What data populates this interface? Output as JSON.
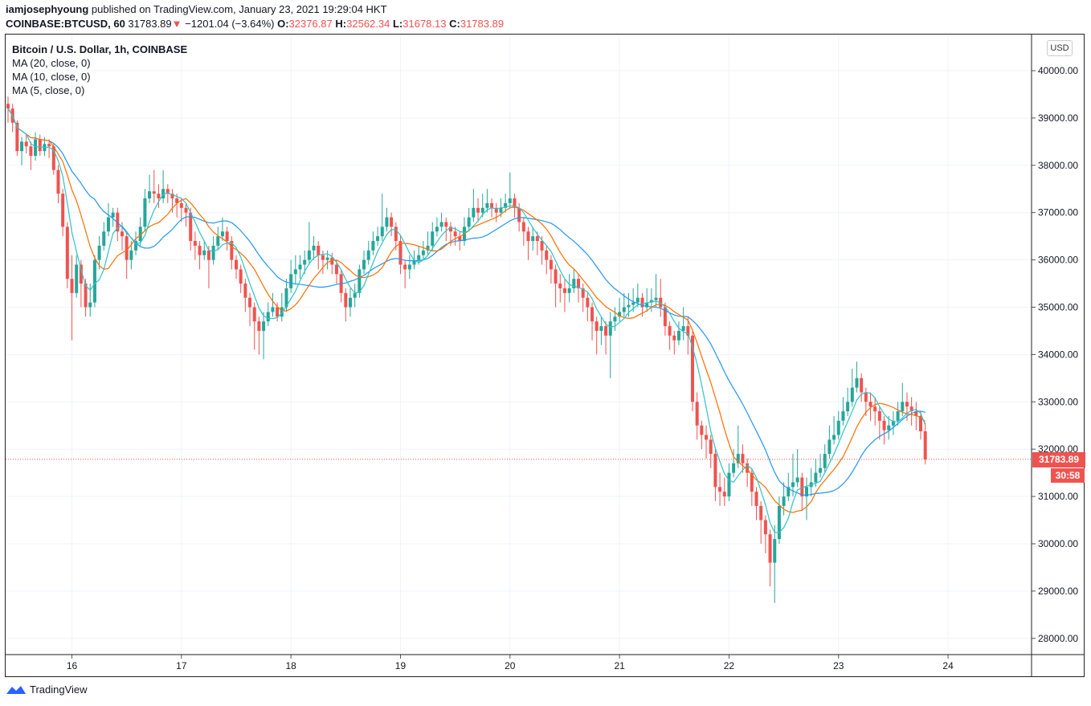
{
  "header": {
    "author": "iamjosephyoung",
    "published": "published on TradingView.com, January 23, 2021 19:29:04 HKT",
    "symbol": "COINBASE:BTCUSD, 60",
    "last": "31783.89",
    "change": "−1201.04 (−3.64%)",
    "o_label": "O:",
    "o": "32376.87",
    "h_label": "H:",
    "h": "32562.34",
    "l_label": "L:",
    "l": "31678.13",
    "c_label": "C:",
    "c": "31783.89",
    "down_icon": "triangle-down"
  },
  "legend": {
    "title": "Bitcoin / U.S. Dollar, 1h, COINBASE",
    "ma20": "MA (20, close, 0)",
    "ma10": "MA (10, close, 0)",
    "ma5": "MA (5, close, 0)"
  },
  "currency_button": "USD",
  "last_price_label": "31783.89",
  "countdown": "30:58",
  "footer": {
    "brand": "TradingView",
    "logo_icon": "tradingview-logo"
  },
  "colors": {
    "up": "#26a69a",
    "down": "#ef5350",
    "ma20": "#2196f3",
    "ma10": "#ff6d00",
    "ma5": "#2ec4c6"
  },
  "chart_data": {
    "type": "candlestick",
    "interval": "1h",
    "x_ticks": [
      "16",
      "17",
      "18",
      "19",
      "20",
      "21",
      "22",
      "23",
      "24"
    ],
    "y_ticks": [
      "28000.00",
      "29000.00",
      "30000.00",
      "31000.00",
      "32000.00",
      "33000.00",
      "34000.00",
      "35000.00",
      "36000.00",
      "37000.00",
      "38000.00",
      "39000.00",
      "40000.00"
    ],
    "ylim": [
      27700,
      40800
    ],
    "grid": true,
    "moving_averages": [
      20,
      10,
      5
    ],
    "candles_ohlc": [
      [
        39300,
        39450,
        38900,
        39200
      ],
      [
        39200,
        39300,
        38700,
        38900
      ],
      [
        38900,
        38950,
        38200,
        38300
      ],
      [
        38300,
        38600,
        38000,
        38500
      ],
      [
        38500,
        38650,
        38250,
        38400
      ],
      [
        38400,
        38500,
        37900,
        38200
      ],
      [
        38200,
        38700,
        38100,
        38550
      ],
      [
        38550,
        38650,
        38200,
        38300
      ],
      [
        38300,
        38600,
        38200,
        38450
      ],
      [
        38450,
        38550,
        38150,
        38400
      ],
      [
        38400,
        38450,
        37800,
        37900
      ],
      [
        37900,
        38000,
        37200,
        37400
      ],
      [
        37400,
        37500,
        36500,
        36700
      ],
      [
        36700,
        36800,
        35400,
        35600
      ],
      [
        35600,
        36100,
        34300,
        35300
      ],
      [
        35300,
        36100,
        35200,
        35900
      ],
      [
        35900,
        36000,
        35000,
        35500
      ],
      [
        35500,
        35600,
        34800,
        35000
      ],
      [
        35000,
        35500,
        34800,
        35100
      ],
      [
        35100,
        36100,
        35000,
        36000
      ],
      [
        36000,
        36500,
        35800,
        36300
      ],
      [
        36300,
        36800,
        36200,
        36600
      ],
      [
        36600,
        37200,
        36500,
        36900
      ],
      [
        36900,
        37100,
        36700,
        37000
      ],
      [
        37000,
        37100,
        36400,
        36600
      ],
      [
        36600,
        36800,
        36200,
        36500
      ],
      [
        36500,
        36600,
        35600,
        36000
      ],
      [
        36000,
        36400,
        35800,
        36200
      ],
      [
        36200,
        36600,
        36100,
        36400
      ],
      [
        36400,
        36900,
        36300,
        36700
      ],
      [
        36700,
        37500,
        36600,
        37300
      ],
      [
        37300,
        37800,
        37200,
        37450
      ],
      [
        37450,
        37900,
        37200,
        37400
      ],
      [
        37400,
        37600,
        37100,
        37300
      ],
      [
        37300,
        37900,
        37200,
        37500
      ],
      [
        37500,
        37600,
        37200,
        37400
      ],
      [
        37400,
        37500,
        37000,
        37300
      ],
      [
        37300,
        37400,
        36900,
        37200
      ],
      [
        37200,
        37300,
        36800,
        37100
      ],
      [
        37100,
        37200,
        36700,
        37000
      ],
      [
        37000,
        37100,
        36200,
        36400
      ],
      [
        36400,
        36600,
        36000,
        36300
      ],
      [
        36300,
        36400,
        35800,
        36100
      ],
      [
        36100,
        36400,
        36000,
        36200
      ],
      [
        36200,
        36300,
        35400,
        36000
      ],
      [
        36000,
        36500,
        35900,
        36300
      ],
      [
        36300,
        36700,
        36200,
        36500
      ],
      [
        36500,
        36900,
        36400,
        36600
      ],
      [
        36600,
        36700,
        36200,
        36400
      ],
      [
        36400,
        36500,
        35800,
        36000
      ],
      [
        36000,
        36100,
        35600,
        35800
      ],
      [
        35800,
        35900,
        35300,
        35500
      ],
      [
        35500,
        35600,
        34900,
        35200
      ],
      [
        35200,
        35300,
        34600,
        35000
      ],
      [
        35000,
        35100,
        34100,
        34700
      ],
      [
        34700,
        34800,
        34000,
        34500
      ],
      [
        34500,
        34900,
        33900,
        34700
      ],
      [
        34700,
        35100,
        34600,
        34900
      ],
      [
        34900,
        35300,
        34800,
        35000
      ],
      [
        35000,
        35100,
        34700,
        34800
      ],
      [
        34800,
        35300,
        34700,
        35000
      ],
      [
        35000,
        35600,
        34900,
        35400
      ],
      [
        35400,
        36000,
        35300,
        35700
      ],
      [
        35700,
        36100,
        35500,
        35800
      ],
      [
        35800,
        36100,
        35600,
        35900
      ],
      [
        35900,
        36200,
        35700,
        36000
      ],
      [
        36000,
        36800,
        35900,
        36200
      ],
      [
        36200,
        36500,
        36000,
        36300
      ],
      [
        36300,
        36400,
        35800,
        36100
      ],
      [
        36100,
        36200,
        35700,
        36000
      ],
      [
        36000,
        36200,
        35800,
        36050
      ],
      [
        36050,
        36150,
        35700,
        35900
      ],
      [
        35900,
        36000,
        35500,
        35700
      ],
      [
        35700,
        35800,
        35100,
        35300
      ],
      [
        35300,
        35400,
        34700,
        35000
      ],
      [
        35000,
        35400,
        34800,
        35200
      ],
      [
        35200,
        35500,
        35000,
        35300
      ],
      [
        35300,
        35900,
        35200,
        35800
      ],
      [
        35800,
        36200,
        35700,
        36000
      ],
      [
        36000,
        36400,
        35900,
        36200
      ],
      [
        36200,
        36600,
        36100,
        36400
      ],
      [
        36400,
        36700,
        36300,
        36500
      ],
      [
        36500,
        37400,
        36400,
        36700
      ],
      [
        36700,
        37100,
        36600,
        36900
      ],
      [
        36900,
        37000,
        36500,
        36700
      ],
      [
        36700,
        36800,
        36200,
        36400
      ],
      [
        36400,
        36500,
        35700,
        35900
      ],
      [
        35900,
        36000,
        35400,
        35800
      ],
      [
        35800,
        36100,
        35600,
        35900
      ],
      [
        35900,
        36200,
        35800,
        36000
      ],
      [
        36000,
        36300,
        35900,
        36100
      ],
      [
        36100,
        36400,
        36000,
        36200
      ],
      [
        36200,
        36600,
        36100,
        36300
      ],
      [
        36300,
        36800,
        36200,
        36600
      ],
      [
        36600,
        36900,
        36500,
        36700
      ],
      [
        36700,
        37000,
        36600,
        36800
      ],
      [
        36800,
        36900,
        36400,
        36700
      ],
      [
        36700,
        36800,
        36300,
        36600
      ],
      [
        36600,
        36700,
        36300,
        36500
      ],
      [
        36500,
        36600,
        36200,
        36400
      ],
      [
        36400,
        36900,
        36300,
        36700
      ],
      [
        36700,
        37100,
        36600,
        36900
      ],
      [
        36900,
        37500,
        36800,
        37100
      ],
      [
        37100,
        37300,
        36800,
        37000
      ],
      [
        37000,
        37400,
        36900,
        37100
      ],
      [
        37100,
        37500,
        37000,
        37200
      ],
      [
        37200,
        37300,
        36900,
        37100
      ],
      [
        37100,
        37200,
        36800,
        37000
      ],
      [
        37000,
        37300,
        36900,
        37100
      ],
      [
        37100,
        37400,
        37000,
        37200
      ],
      [
        37200,
        37850,
        37100,
        37300
      ],
      [
        37300,
        37400,
        36900,
        37100
      ],
      [
        37100,
        37200,
        36600,
        36800
      ],
      [
        36800,
        36900,
        36300,
        36600
      ],
      [
        36600,
        36700,
        36000,
        36400
      ],
      [
        36400,
        36700,
        36200,
        36500
      ],
      [
        36500,
        36600,
        36100,
        36400
      ],
      [
        36400,
        36500,
        35900,
        36200
      ],
      [
        36200,
        36300,
        35700,
        36000
      ],
      [
        36000,
        36100,
        35500,
        35800
      ],
      [
        35800,
        35900,
        35000,
        35500
      ],
      [
        35500,
        35700,
        35100,
        35400
      ],
      [
        35400,
        35600,
        34900,
        35300
      ],
      [
        35300,
        35700,
        35100,
        35400
      ],
      [
        35400,
        35800,
        35300,
        35600
      ],
      [
        35600,
        35700,
        35100,
        35400
      ],
      [
        35400,
        35500,
        34900,
        35200
      ],
      [
        35200,
        35300,
        34700,
        35000
      ],
      [
        35000,
        35100,
        34300,
        34700
      ],
      [
        34700,
        34800,
        34000,
        34500
      ],
      [
        34500,
        34800,
        34200,
        34600
      ],
      [
        34600,
        34700,
        34000,
        34400
      ],
      [
        34400,
        34900,
        33500,
        34700
      ],
      [
        34700,
        35000,
        34500,
        34800
      ],
      [
        34800,
        35200,
        34700,
        34900
      ],
      [
        34900,
        35300,
        34800,
        35000
      ],
      [
        35000,
        35300,
        34800,
        35050
      ],
      [
        35050,
        35400,
        34900,
        35100
      ],
      [
        35100,
        35500,
        35000,
        35200
      ],
      [
        35200,
        35300,
        34800,
        35000
      ],
      [
        35000,
        35400,
        34900,
        35100
      ],
      [
        35100,
        35400,
        34900,
        35150
      ],
      [
        35150,
        35700,
        35000,
        35200
      ],
      [
        35200,
        35600,
        34800,
        35000
      ],
      [
        35000,
        35100,
        34400,
        34600
      ],
      [
        34600,
        34700,
        34100,
        34400
      ],
      [
        34400,
        34500,
        34000,
        34300
      ],
      [
        34300,
        34700,
        34200,
        34500
      ],
      [
        34500,
        35000,
        34300,
        34600
      ],
      [
        34600,
        34800,
        34000,
        34400
      ],
      [
        34400,
        34500,
        32800,
        33000
      ],
      [
        33000,
        33200,
        32200,
        32500
      ],
      [
        32500,
        32600,
        32000,
        32300
      ],
      [
        32300,
        32500,
        31800,
        32200
      ],
      [
        32200,
        32300,
        31600,
        31900
      ],
      [
        31900,
        32000,
        30900,
        31200
      ],
      [
        31200,
        31500,
        30800,
        31100
      ],
      [
        31100,
        31400,
        30800,
        31000
      ],
      [
        31000,
        31700,
        30900,
        31500
      ],
      [
        31500,
        32000,
        31400,
        31700
      ],
      [
        31700,
        32500,
        31600,
        31900
      ],
      [
        31900,
        32100,
        31500,
        31700
      ],
      [
        31700,
        31800,
        31200,
        31500
      ],
      [
        31500,
        31600,
        30800,
        31100
      ],
      [
        31100,
        31200,
        30500,
        30800
      ],
      [
        30800,
        30900,
        30000,
        30500
      ],
      [
        30500,
        30600,
        29800,
        30200
      ],
      [
        30200,
        30300,
        29100,
        29600
      ],
      [
        29600,
        30400,
        28750,
        30100
      ],
      [
        30100,
        31000,
        30000,
        30800
      ],
      [
        30800,
        31300,
        30600,
        31000
      ],
      [
        31000,
        31500,
        30900,
        31200
      ],
      [
        31200,
        31900,
        31000,
        31300
      ],
      [
        31300,
        32000,
        31200,
        31400
      ],
      [
        31400,
        31500,
        30700,
        31000
      ],
      [
        31000,
        31400,
        30500,
        31200
      ],
      [
        31200,
        31600,
        31000,
        31300
      ],
      [
        31300,
        31800,
        31200,
        31500
      ],
      [
        31500,
        31900,
        31400,
        31600
      ],
      [
        31600,
        32100,
        31500,
        31900
      ],
      [
        31900,
        32500,
        31800,
        32200
      ],
      [
        32200,
        32700,
        32100,
        32300
      ],
      [
        32300,
        32800,
        32200,
        32600
      ],
      [
        32600,
        33100,
        32500,
        32800
      ],
      [
        32800,
        33300,
        32700,
        33000
      ],
      [
        33000,
        33700,
        32900,
        33300
      ],
      [
        33300,
        33850,
        33200,
        33500
      ],
      [
        33500,
        33600,
        33000,
        33200
      ],
      [
        33200,
        33300,
        32700,
        33000
      ],
      [
        33000,
        33200,
        32600,
        32900
      ],
      [
        32900,
        33100,
        32500,
        32800
      ],
      [
        32800,
        32900,
        32200,
        32600
      ],
      [
        32600,
        32700,
        32100,
        32400
      ],
      [
        32400,
        32700,
        32200,
        32500
      ],
      [
        32500,
        32800,
        32300,
        32600
      ],
      [
        32600,
        33000,
        32500,
        32800
      ],
      [
        32800,
        33400,
        32700,
        33000
      ],
      [
        33000,
        33200,
        32600,
        32900
      ],
      [
        32900,
        33100,
        32500,
        32800
      ],
      [
        32800,
        33000,
        32400,
        32700
      ],
      [
        32700,
        32800,
        32200,
        32376.87
      ],
      [
        32376.87,
        32562.34,
        31678.13,
        31783.89
      ]
    ]
  }
}
